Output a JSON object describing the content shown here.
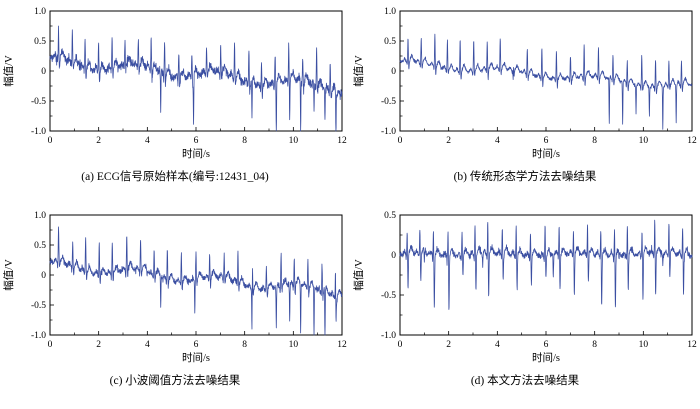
{
  "figure": {
    "background": "#ffffff",
    "line_color": "#3b4fa2",
    "axis_color": "#000000"
  },
  "chart_data": [
    {
      "type": "line",
      "caption": "(a) ECG信号原始样本(编号:12431_04)",
      "xlabel": "时间/s",
      "ylabel": "幅值/V",
      "xlim": [
        0,
        12
      ],
      "ylim": [
        -1.0,
        1.0
      ],
      "xticks": [
        0,
        2,
        4,
        6,
        8,
        10,
        12
      ],
      "xtick_labels": [
        "0",
        "2",
        "4",
        "6",
        "8",
        "10",
        "12"
      ],
      "yticks": [
        1.0,
        0.5,
        0,
        -0.5,
        -1.0
      ],
      "ytick_labels": [
        "1.0",
        "0.5",
        "0",
        "-0.5",
        "-1.0"
      ],
      "grid": false,
      "signal": {
        "seed": 11,
        "fs": 120,
        "first_beat": 0.3,
        "beat_interval": 0.56,
        "beat_jitter": 0.08,
        "r_amp": 0.5,
        "r_jitter": 0.25,
        "q_amp": -0.07,
        "s_amp": -0.14,
        "s_jitter": 0.4,
        "t_amp": 0.12,
        "p_amp": 0.06,
        "noise": 0.035,
        "wander_amp": 0.08,
        "wander_freq": 0.3,
        "wander_phase": 1.2,
        "drift_start": 0.15,
        "drift_end": -0.3,
        "artifact_amp": -0.7,
        "artifact_jitter": 0.35,
        "artifact_times": [
          4.55,
          5.9,
          8.3,
          9.3,
          9.85,
          10.3,
          10.85,
          11.3,
          11.75
        ]
      }
    },
    {
      "type": "line",
      "caption": "(b) 传统形态学方法去噪结果",
      "xlabel": "时间/s",
      "ylabel": "幅值/V",
      "xlim": [
        0,
        12
      ],
      "ylim": [
        -1.0,
        1.0
      ],
      "xticks": [
        0,
        2,
        4,
        6,
        8,
        10,
        12
      ],
      "xtick_labels": [
        "0",
        "2",
        "4",
        "6",
        "8",
        "10",
        "12"
      ],
      "yticks": [
        1.0,
        0.5,
        0,
        -0.5,
        -1.0
      ],
      "ytick_labels": [
        "1.0",
        "0.5",
        "0",
        "-0.5",
        "-1.0"
      ],
      "grid": false,
      "signal": {
        "seed": 23,
        "fs": 120,
        "first_beat": 0.32,
        "beat_interval": 0.56,
        "beat_jitter": 0.08,
        "r_amp": 0.46,
        "r_jitter": 0.2,
        "q_amp": -0.06,
        "s_amp": -0.12,
        "s_jitter": 0.35,
        "t_amp": 0.1,
        "p_amp": 0.05,
        "noise": 0.013,
        "wander_amp": 0.05,
        "wander_freq": 0.26,
        "wander_phase": 0.8,
        "drift_start": 0.12,
        "drift_end": -0.28,
        "artifact_amp": -0.62,
        "artifact_jitter": 0.35,
        "artifact_times": [
          4.65,
          8.6,
          9.15,
          9.7,
          10.25,
          10.8,
          11.35
        ]
      }
    },
    {
      "type": "line",
      "caption": "(c) 小波阈值方法去噪结果",
      "xlabel": "时间/s",
      "ylabel": "幅值/V",
      "xlim": [
        0,
        12
      ],
      "ylim": [
        -1.0,
        1.0
      ],
      "xticks": [
        0,
        2,
        4,
        6,
        8,
        10,
        12
      ],
      "xtick_labels": [
        "0",
        "2",
        "4",
        "6",
        "8",
        "10",
        "12"
      ],
      "yticks": [
        1.0,
        0.5,
        0,
        -0.5,
        -1.0
      ],
      "ytick_labels": [
        "1.0",
        "0.5",
        "0",
        "-0.5",
        "-1.0"
      ],
      "grid": false,
      "signal": {
        "seed": 37,
        "fs": 120,
        "first_beat": 0.3,
        "beat_interval": 0.56,
        "beat_jitter": 0.08,
        "r_amp": 0.48,
        "r_jitter": 0.22,
        "q_amp": -0.07,
        "s_amp": -0.13,
        "s_jitter": 0.4,
        "t_amp": 0.11,
        "p_amp": 0.05,
        "noise": 0.024,
        "wander_amp": 0.07,
        "wander_freq": 0.3,
        "wander_phase": 1.1,
        "drift_start": 0.15,
        "drift_end": -0.3,
        "artifact_amp": -0.68,
        "artifact_jitter": 0.35,
        "artifact_times": [
          4.55,
          5.95,
          8.3,
          9.3,
          9.85,
          10.3,
          10.85,
          11.3,
          11.75
        ]
      }
    },
    {
      "type": "line",
      "caption": "(d) 本文方法去噪结果",
      "xlabel": "时间/s",
      "ylabel": "幅值/V",
      "xlim": [
        0,
        12
      ],
      "ylim": [
        -1.0,
        0.5
      ],
      "xticks": [
        0,
        2,
        4,
        6,
        8,
        10,
        12
      ],
      "xtick_labels": [
        "0",
        "2",
        "4",
        "6",
        "8",
        "10",
        "12"
      ],
      "yticks": [
        0.5,
        0,
        -0.5,
        -1.0
      ],
      "ytick_labels": [
        "0.5",
        "0",
        "-0.5",
        "-1.0"
      ],
      "grid": false,
      "signal": {
        "seed": 51,
        "fs": 120,
        "first_beat": 0.28,
        "beat_interval": 0.56,
        "beat_jitter": 0.08,
        "r_amp": 0.36,
        "r_jitter": 0.2,
        "q_amp": -0.05,
        "s_amp": -0.48,
        "s_jitter": 0.5,
        "t_amp": 0.08,
        "p_amp": 0.04,
        "noise": 0.018,
        "wander_amp": 0.015,
        "wander_freq": 0.3,
        "wander_phase": 0.5,
        "drift_start": 0.0,
        "drift_end": 0.0,
        "artifact_amp": -0.22,
        "artifact_jitter": 0.4,
        "artifact_times": [
          1.0,
          3.4,
          6.3,
          9.0,
          10.8
        ]
      }
    }
  ]
}
